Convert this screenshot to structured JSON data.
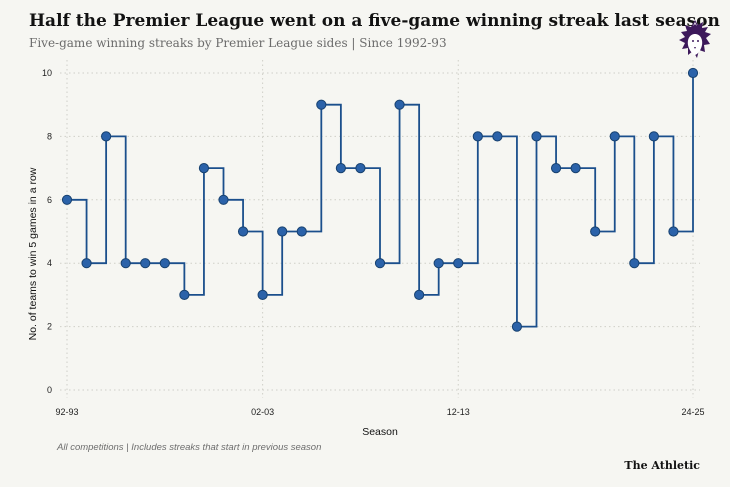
{
  "header": {
    "title": "Half the Premier League went on a five-game winning streak last season",
    "subtitle": "Five-game winning streaks by Premier League sides | Since 1992-93"
  },
  "logo": {
    "icon": "premier-league-lion-icon",
    "color": "#3d195b"
  },
  "footnote": "All competitions | Includes streaks that start in previous season",
  "brand": "The Athletic",
  "colors": {
    "line": "#1b4f8c",
    "marker": "#2b62a9",
    "marker_stroke": "#17416f",
    "grid": "#cfcfc8"
  },
  "chart_data": {
    "type": "line",
    "step": "post",
    "xlabel": "Season",
    "ylabel": "No. of teams to win 5 games in a row",
    "ylim": [
      0,
      10
    ],
    "yticks": [
      0,
      2,
      4,
      6,
      8,
      10
    ],
    "x_tick_labels": [
      "92-93",
      "02-03",
      "12-13",
      "24-25"
    ],
    "grid": true,
    "seasons": [
      "92-93",
      "93-94",
      "94-95",
      "95-96",
      "96-97",
      "97-98",
      "98-99",
      "99-00",
      "00-01",
      "01-02",
      "02-03",
      "03-04",
      "04-05",
      "05-06",
      "06-07",
      "07-08",
      "08-09",
      "09-10",
      "10-11",
      "11-12",
      "12-13",
      "13-14",
      "14-15",
      "15-16",
      "16-17",
      "17-18",
      "18-19",
      "19-20",
      "20-21",
      "21-22",
      "22-23",
      "23-24",
      "24-25"
    ],
    "values": [
      6,
      4,
      8,
      4,
      4,
      4,
      3,
      7,
      6,
      5,
      3,
      5,
      5,
      9,
      7,
      7,
      4,
      9,
      3,
      4,
      4,
      8,
      8,
      2,
      8,
      7,
      7,
      5,
      8,
      4,
      8,
      5,
      10
    ]
  }
}
